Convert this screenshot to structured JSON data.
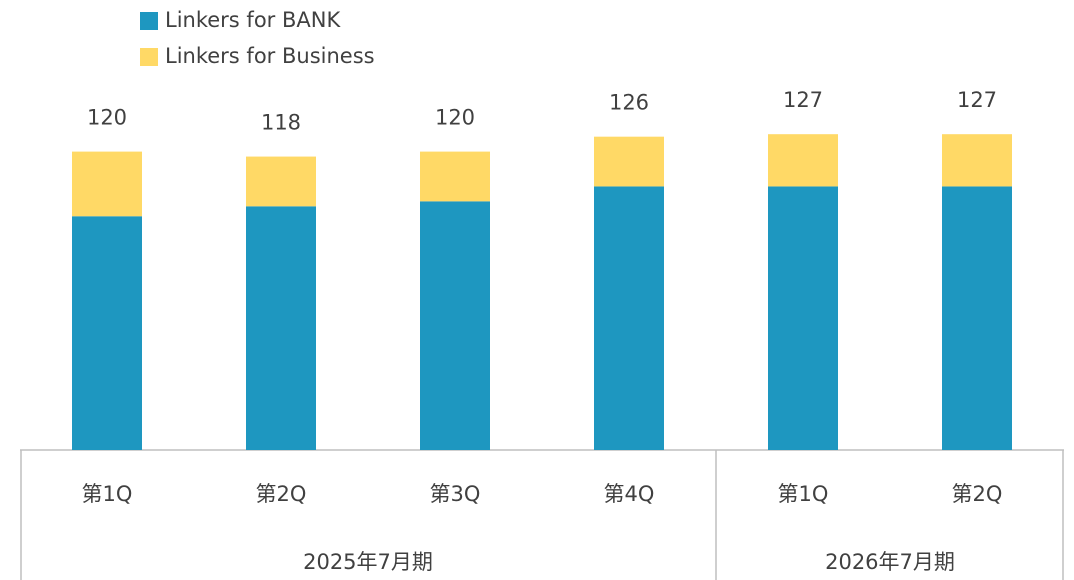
{
  "chart_data": {
    "type": "stacked_bar",
    "category_groups": [
      {
        "label": "2025年7月期",
        "categories": [
          "第1Q",
          "第2Q",
          "第3Q",
          "第4Q"
        ]
      },
      {
        "label": "2026年7月期",
        "categories": [
          "第1Q",
          "第2Q"
        ]
      }
    ],
    "series": [
      {
        "name": "Linkers for BANK",
        "color": "#1e97c0",
        "values": [
          94,
          98,
          100,
          106,
          106,
          106
        ]
      },
      {
        "name": "Linkers for Business",
        "color": "#ffd966",
        "values": [
          26,
          20,
          20,
          20,
          21,
          21
        ]
      }
    ],
    "totals": [
      120,
      118,
      120,
      126,
      127,
      127
    ],
    "ylim": [
      0,
      150
    ],
    "legend": "top-left"
  }
}
